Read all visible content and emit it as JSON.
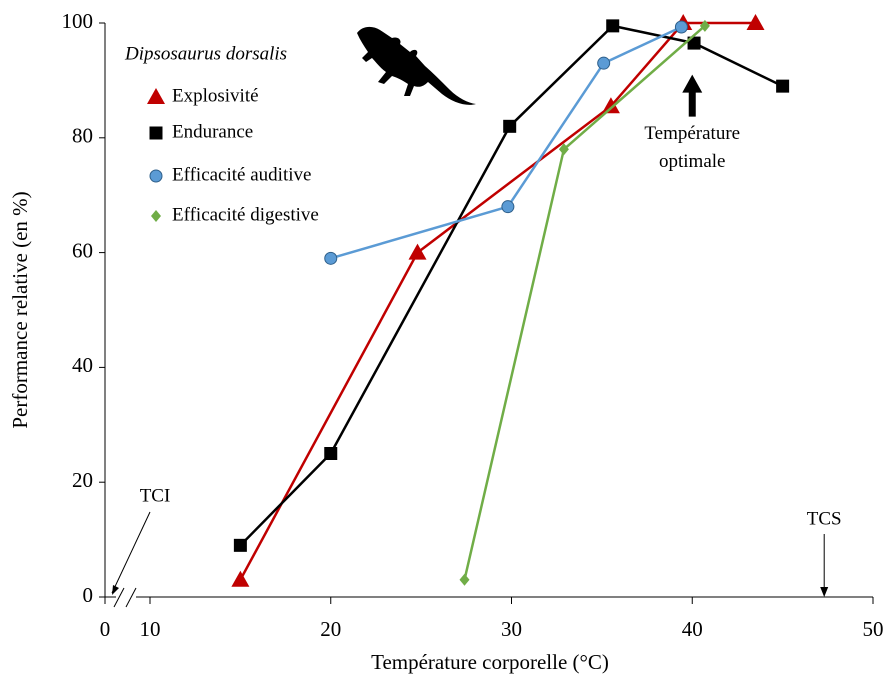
{
  "chart_data": {
    "type": "line",
    "xlabel": "Température corporelle (°C)",
    "ylabel": "Performance relative (en %)",
    "legend_title": "Dipsosaurus dorsalis",
    "xlim": [
      0,
      50
    ],
    "xticks": [
      0,
      10,
      20,
      30,
      40,
      50
    ],
    "xbreak": [
      0,
      10
    ],
    "ylim": [
      0,
      100
    ],
    "yticks": [
      0,
      20,
      40,
      60,
      80,
      100
    ],
    "grid": false,
    "legend": "upper left",
    "series": [
      {
        "name": "Explosivité",
        "color": "#c00000",
        "marker": "triangle",
        "x": [
          15,
          24.8,
          35.5,
          39.5,
          43.5
        ],
        "values": [
          3,
          60,
          85.5,
          100,
          100
        ]
      },
      {
        "name": "Endurance",
        "color": "#000000",
        "marker": "square",
        "x": [
          15,
          20,
          29.9,
          35.6,
          40.1,
          45
        ],
        "values": [
          9,
          25,
          82,
          99.5,
          96.5,
          89
        ]
      },
      {
        "name": "Efficacité auditive",
        "color": "#5b9bd5",
        "marker": "circle",
        "x": [
          20,
          29.8,
          35.1,
          39.4
        ],
        "values": [
          59,
          68,
          93,
          99.3
        ]
      },
      {
        "name": "Efficacité digestive",
        "color": "#70ad47",
        "marker": "diamond",
        "x": [
          27.4,
          32.9,
          40.7
        ],
        "values": [
          3,
          78,
          99.5
        ]
      }
    ],
    "annotations": [
      {
        "text": "TCI",
        "x": 0
      },
      {
        "text": "TCS",
        "x": 47.3
      },
      {
        "lines": [
          "Température",
          "optimale"
        ],
        "x": 40,
        "y": 91
      }
    ]
  }
}
